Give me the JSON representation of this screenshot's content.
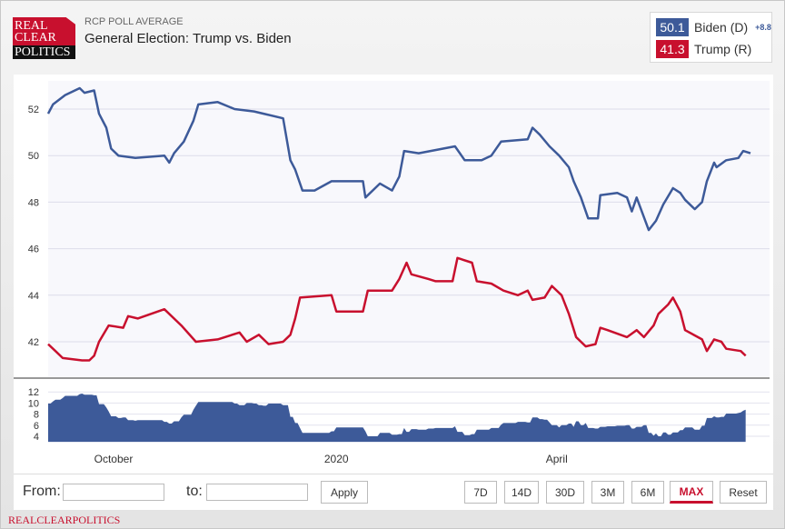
{
  "header": {
    "logo_text": [
      "REAL",
      "CLEAR",
      "POLITICS"
    ],
    "subtitle": "RCP POLL AVERAGE",
    "title": "General Election: Trump vs. Biden"
  },
  "legend": {
    "biden": {
      "value": "50.1",
      "label": "Biden (D)",
      "spread": "+8.8",
      "color": "#3d5a99"
    },
    "trump": {
      "value": "41.3",
      "label": "Trump (R)",
      "color": "#c8102e"
    }
  },
  "controls": {
    "from_label": "From:",
    "from_value": "",
    "to_label": "to:",
    "to_value": "",
    "apply": "Apply",
    "ranges": [
      "7D",
      "14D",
      "30D",
      "3M",
      "6M",
      "MAX",
      "Reset"
    ],
    "active_range": "MAX"
  },
  "footer": "REALCLEARPOLITICS",
  "chart_data": {
    "type": "line",
    "x_unit": "days since 2019-09-04",
    "x_ticks": [
      {
        "label": "October",
        "day": 27
      },
      {
        "label": "2020",
        "day": 119
      },
      {
        "label": "April",
        "day": 210
      }
    ],
    "y_ticks": [
      "42",
      "44",
      "46",
      "48",
      "50",
      "52"
    ],
    "ylim": [
      41,
      53
    ],
    "spread_ticks": [
      "4",
      "6",
      "8",
      "10",
      "12"
    ],
    "spread_ylim": [
      3,
      13
    ],
    "series": [
      {
        "name": "Biden (D)",
        "color": "#3d5a99",
        "points": [
          [
            0,
            51.8
          ],
          [
            2,
            52.2
          ],
          [
            7,
            52.6
          ],
          [
            13,
            52.9
          ],
          [
            15,
            52.7
          ],
          [
            19,
            52.8
          ],
          [
            21,
            51.8
          ],
          [
            24,
            51.2
          ],
          [
            26,
            50.3
          ],
          [
            29,
            50.0
          ],
          [
            36,
            49.9
          ],
          [
            48,
            50.0
          ],
          [
            50,
            49.7
          ],
          [
            52,
            50.1
          ],
          [
            56,
            50.6
          ],
          [
            60,
            51.5
          ],
          [
            62,
            52.2
          ],
          [
            70,
            52.3
          ],
          [
            77,
            52.0
          ],
          [
            85,
            51.9
          ],
          [
            89,
            51.8
          ],
          [
            97,
            51.6
          ],
          [
            100,
            49.8
          ],
          [
            102,
            49.4
          ],
          [
            105,
            48.5
          ],
          [
            110,
            48.5
          ],
          [
            117,
            48.9
          ],
          [
            130,
            48.9
          ],
          [
            131,
            48.2
          ],
          [
            137,
            48.8
          ],
          [
            142,
            48.5
          ],
          [
            145,
            49.1
          ],
          [
            147,
            50.2
          ],
          [
            153,
            50.1
          ],
          [
            168,
            50.4
          ],
          [
            172,
            49.8
          ],
          [
            179,
            49.8
          ],
          [
            183,
            50.0
          ],
          [
            187,
            50.6
          ],
          [
            198,
            50.7
          ],
          [
            200,
            51.2
          ],
          [
            203,
            50.9
          ],
          [
            207,
            50.4
          ],
          [
            211,
            50.0
          ],
          [
            215,
            49.5
          ],
          [
            217,
            48.9
          ],
          [
            220,
            48.2
          ],
          [
            223,
            47.3
          ],
          [
            227,
            47.3
          ],
          [
            228,
            48.3
          ],
          [
            235,
            48.4
          ],
          [
            239,
            48.2
          ],
          [
            241,
            47.6
          ],
          [
            243,
            48.2
          ],
          [
            248,
            46.8
          ],
          [
            251,
            47.2
          ],
          [
            254,
            47.9
          ],
          [
            258,
            48.6
          ],
          [
            261,
            48.4
          ],
          [
            263,
            48.1
          ],
          [
            267,
            47.7
          ],
          [
            270,
            48.0
          ],
          [
            272,
            48.9
          ],
          [
            275,
            49.7
          ],
          [
            276,
            49.5
          ],
          [
            280,
            49.8
          ],
          [
            285,
            49.9
          ],
          [
            287,
            50.2
          ],
          [
            290,
            50.1
          ]
        ]
      },
      {
        "name": "Trump (R)",
        "color": "#c8102e",
        "points": [
          [
            0,
            41.9
          ],
          [
            3,
            41.6
          ],
          [
            6,
            41.3
          ],
          [
            14,
            41.2
          ],
          [
            17,
            41.2
          ],
          [
            19,
            41.4
          ],
          [
            21,
            42.0
          ],
          [
            25,
            42.7
          ],
          [
            31,
            42.6
          ],
          [
            33,
            43.1
          ],
          [
            37,
            43.0
          ],
          [
            48,
            43.4
          ],
          [
            55,
            42.7
          ],
          [
            61,
            42.0
          ],
          [
            70,
            42.1
          ],
          [
            79,
            42.4
          ],
          [
            82,
            42.0
          ],
          [
            87,
            42.3
          ],
          [
            91,
            41.9
          ],
          [
            97,
            42.0
          ],
          [
            100,
            42.3
          ],
          [
            102,
            43.0
          ],
          [
            104,
            43.9
          ],
          [
            117,
            44.0
          ],
          [
            119,
            43.3
          ],
          [
            130,
            43.3
          ],
          [
            132,
            44.2
          ],
          [
            142,
            44.2
          ],
          [
            145,
            44.7
          ],
          [
            148,
            45.4
          ],
          [
            150,
            44.9
          ],
          [
            157,
            44.7
          ],
          [
            160,
            44.6
          ],
          [
            167,
            44.6
          ],
          [
            169,
            45.6
          ],
          [
            175,
            45.4
          ],
          [
            177,
            44.6
          ],
          [
            183,
            44.5
          ],
          [
            188,
            44.2
          ],
          [
            194,
            44.0
          ],
          [
            198,
            44.2
          ],
          [
            200,
            43.8
          ],
          [
            205,
            43.9
          ],
          [
            208,
            44.4
          ],
          [
            212,
            44.0
          ],
          [
            215,
            43.2
          ],
          [
            218,
            42.2
          ],
          [
            222,
            41.8
          ],
          [
            226,
            41.9
          ],
          [
            228,
            42.6
          ],
          [
            231,
            42.5
          ],
          [
            239,
            42.2
          ],
          [
            243,
            42.5
          ],
          [
            246,
            42.2
          ],
          [
            250,
            42.7
          ],
          [
            252,
            43.2
          ],
          [
            256,
            43.6
          ],
          [
            258,
            43.9
          ],
          [
            261,
            43.3
          ],
          [
            263,
            42.5
          ],
          [
            270,
            42.1
          ],
          [
            272,
            41.6
          ],
          [
            275,
            42.1
          ],
          [
            278,
            42.0
          ],
          [
            280,
            41.7
          ],
          [
            286,
            41.6
          ],
          [
            288,
            41.4
          ]
        ]
      }
    ]
  }
}
